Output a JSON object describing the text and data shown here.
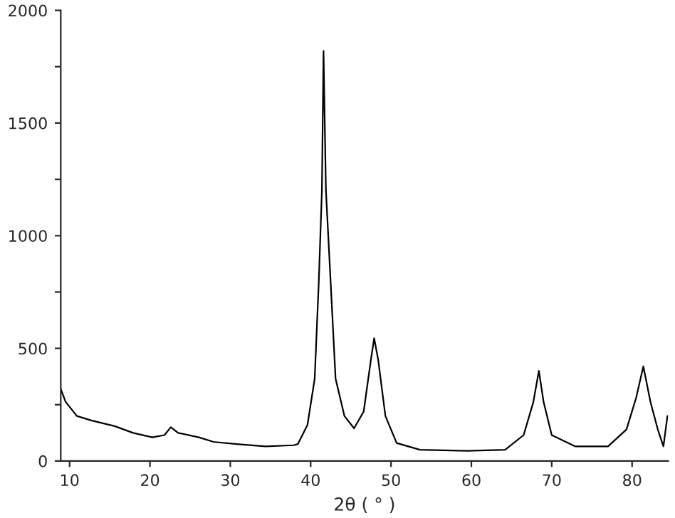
{
  "chart_data": {
    "type": "line",
    "xlabel": "2θ ( ° )",
    "x": [
      8.9,
      9.5,
      10.9,
      12.7,
      15.6,
      17.9,
      20.3,
      21.8,
      22.6,
      23.5,
      26.1,
      27.9,
      30.8,
      34.4,
      37.9,
      38.4,
      39.6,
      40.5,
      41.0,
      41.4,
      41.6,
      41.9,
      42.5,
      43.1,
      44.2,
      45.4,
      46.6,
      47.5,
      47.9,
      48.4,
      49.3,
      50.7,
      53.6,
      59.5,
      64.2,
      66.5,
      67.7,
      68.4,
      69.0,
      70.0,
      72.9,
      77.0,
      79.3,
      80.5,
      81.4,
      82.3,
      83.2,
      83.9,
      84.4
    ],
    "series": [
      {
        "color": "#000000",
        "values": [
          320,
          263,
          200,
          180,
          155,
          125,
          105,
          115,
          150,
          125,
          105,
          85,
          75,
          65,
          70,
          75,
          160,
          365,
          785,
          1200,
          1820,
          1200,
          785,
          365,
          200,
          145,
          220,
          450,
          545,
          450,
          200,
          80,
          50,
          45,
          50,
          115,
          260,
          400,
          260,
          115,
          65,
          65,
          140,
          280,
          420,
          260,
          140,
          65,
          200
        ]
      }
    ],
    "xlim": [
      8.9,
      84.5
    ],
    "ylim": [
      0,
      2000
    ],
    "xticks": [
      10,
      20,
      30,
      40,
      50,
      60,
      70,
      80
    ],
    "yticks": [
      0,
      {
        "value": 250,
        "label": null
      },
      500,
      {
        "value": 750,
        "label": null
      },
      1000,
      {
        "value": 1250,
        "label": null
      },
      1500,
      {
        "value": 1750,
        "label": null
      },
      2000
    ],
    "grid": false,
    "legend": false,
    "marker": "none",
    "line_style": "solid"
  }
}
